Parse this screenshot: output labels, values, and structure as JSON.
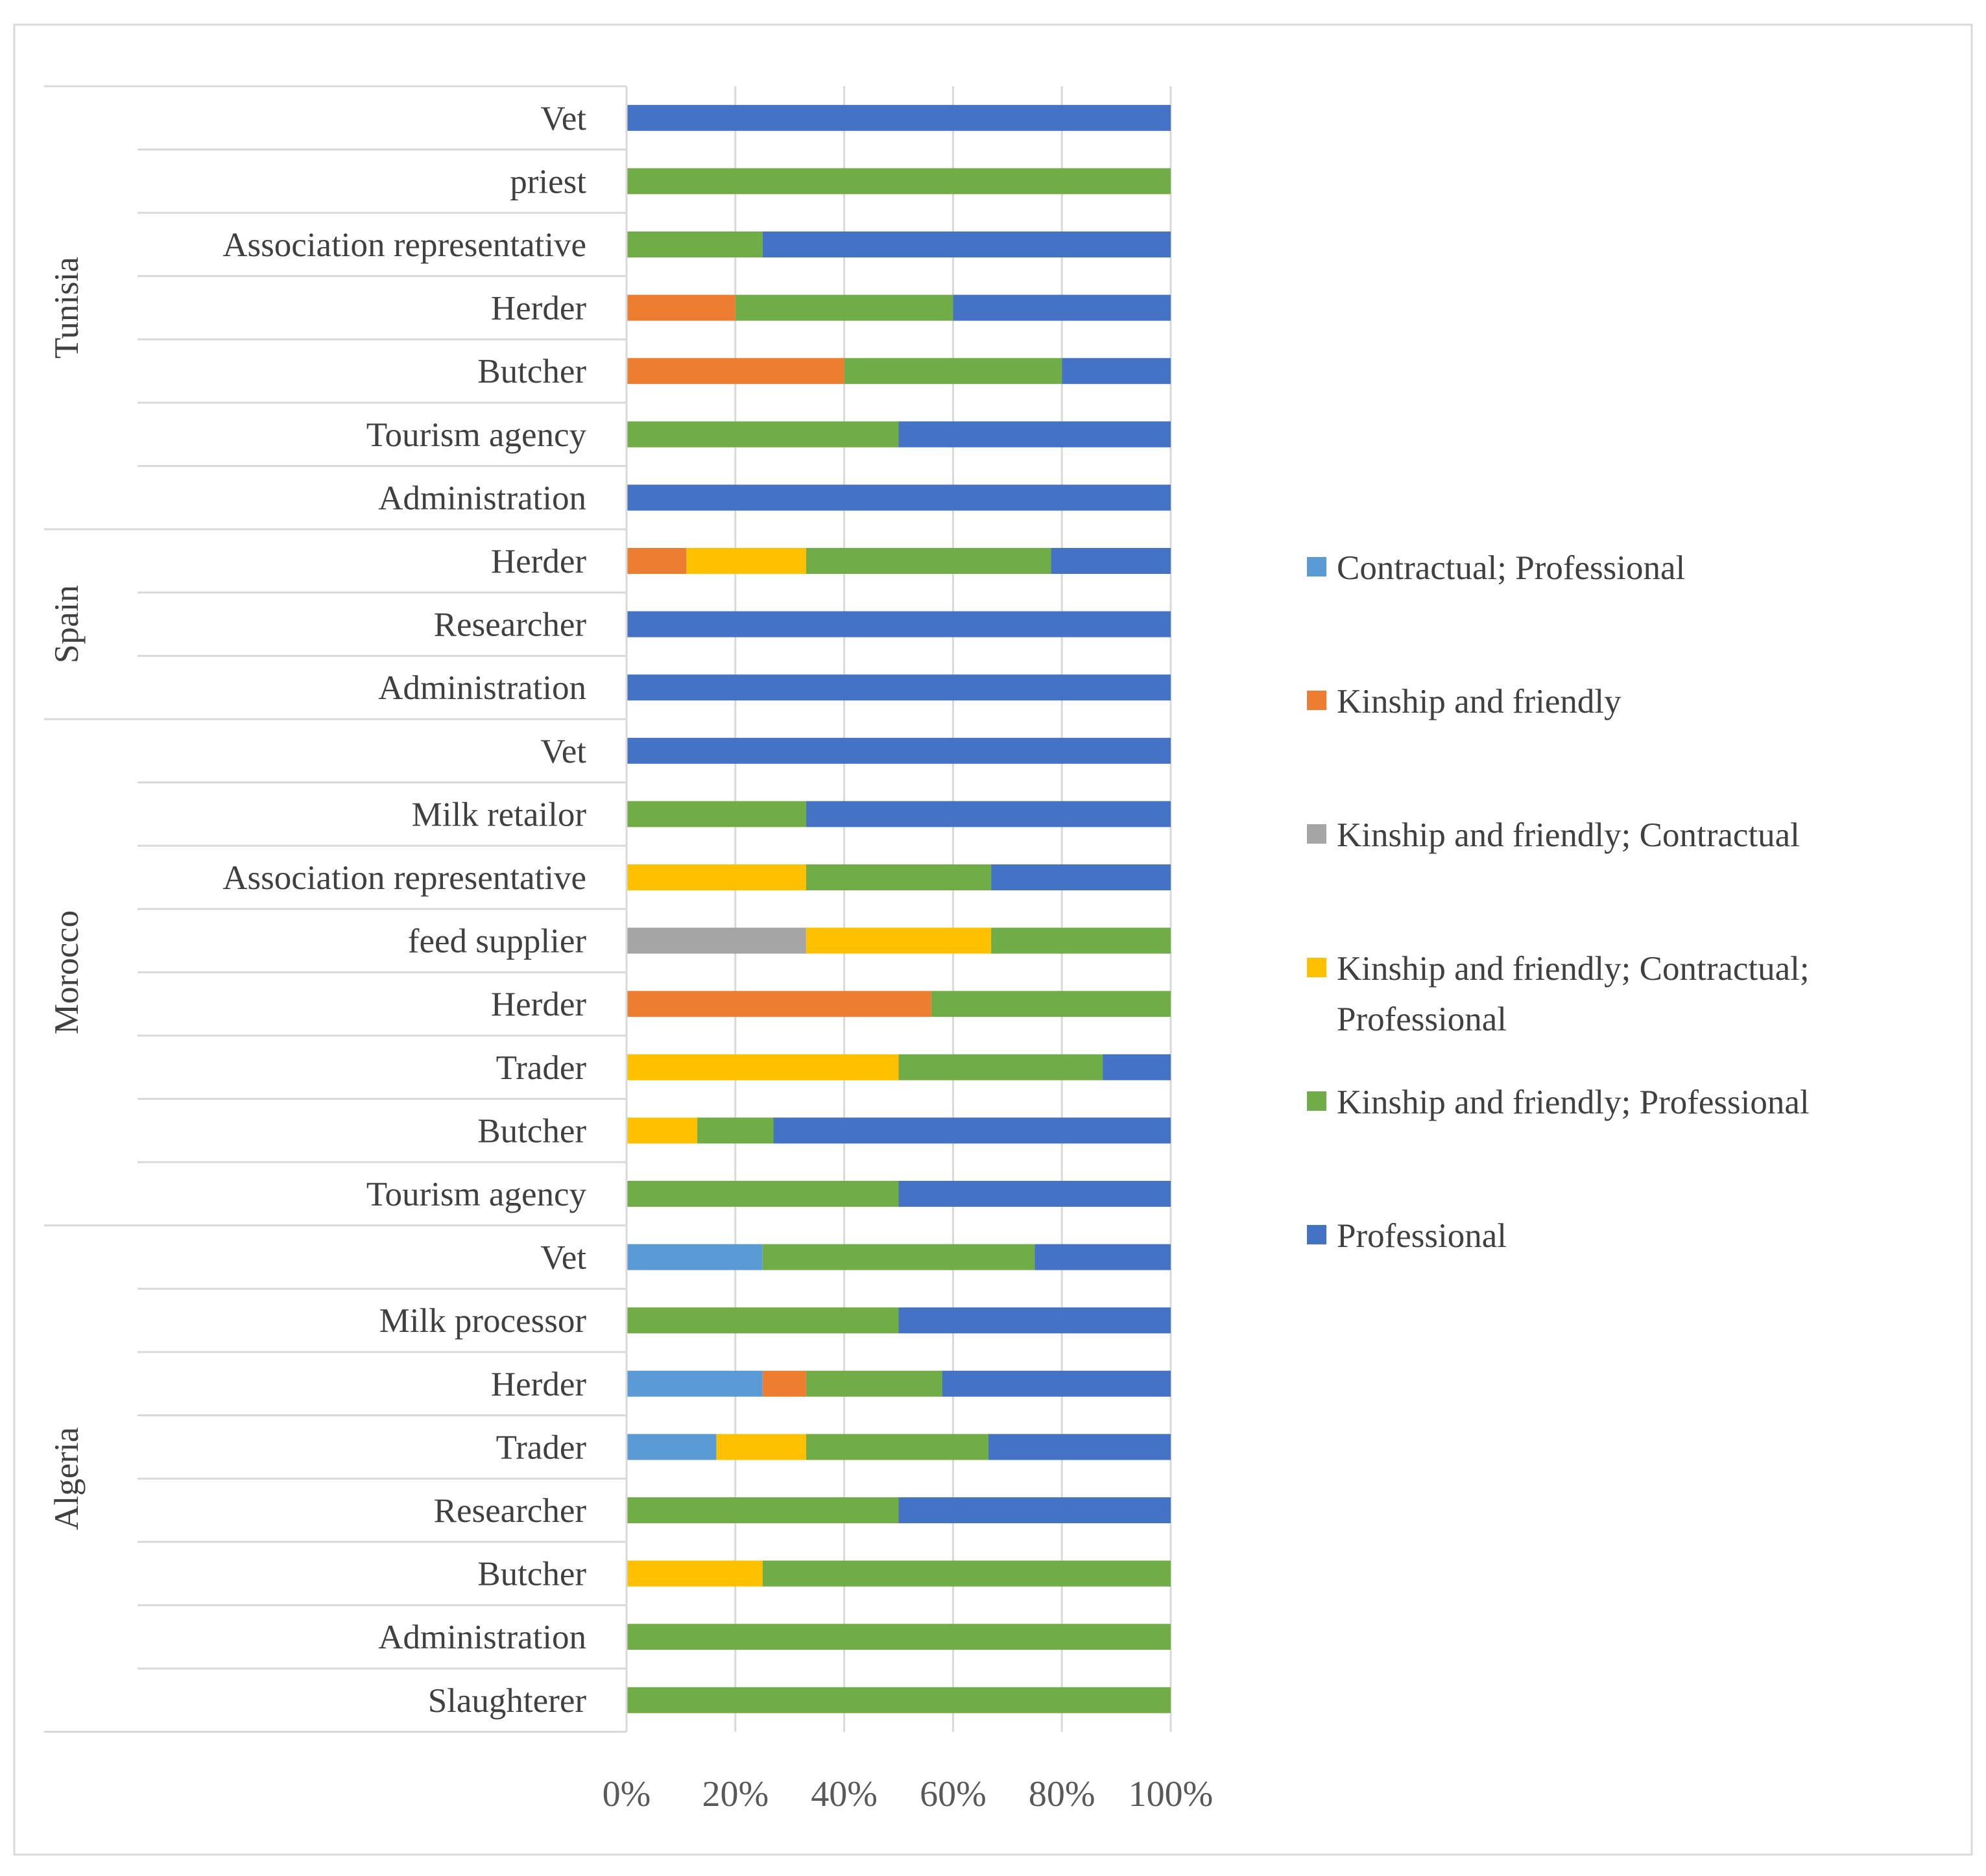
{
  "chart_data": {
    "type": "bar",
    "orientation": "horizontal",
    "stacking": "percent",
    "title": "",
    "xlabel": "",
    "ylabel": "",
    "xlim": [
      0,
      100
    ],
    "x_ticks": [
      "0%",
      "20%",
      "40%",
      "60%",
      "80%",
      "100%"
    ],
    "grid": true,
    "legend_position": "right",
    "series": [
      {
        "name": "Contractual; Professional",
        "color": "#5B9BD5"
      },
      {
        "name": "Kinship and friendly",
        "color": "#ED7D31"
      },
      {
        "name": "Kinship and friendly; Contractual",
        "color": "#A5A5A5"
      },
      {
        "name": "Kinship and friendly; Contractual; Professional",
        "color": "#FFC000"
      },
      {
        "name": "Kinship and friendly; Professional",
        "color": "#70AD47"
      },
      {
        "name": "Professional",
        "color": "#4472C4"
      }
    ],
    "groups": [
      {
        "name": "Tunisia",
        "categories": [
          {
            "label": "Vet",
            "values": [
              0,
              0,
              0,
              0,
              0,
              100
            ]
          },
          {
            "label": "priest",
            "values": [
              0,
              0,
              0,
              0,
              100,
              0
            ]
          },
          {
            "label": "Association representative",
            "values": [
              0,
              0,
              0,
              0,
              25,
              75
            ]
          },
          {
            "label": "Herder",
            "values": [
              0,
              20,
              0,
              0,
              40,
              40
            ]
          },
          {
            "label": "Butcher",
            "values": [
              0,
              40,
              0,
              0,
              40,
              20
            ]
          },
          {
            "label": "Tourism agency",
            "values": [
              0,
              0,
              0,
              0,
              50,
              50
            ]
          },
          {
            "label": "Administration",
            "values": [
              0,
              0,
              0,
              0,
              0,
              100
            ]
          }
        ]
      },
      {
        "name": "Spain",
        "categories": [
          {
            "label": "Herder",
            "values": [
              0,
              11,
              0,
              22,
              45,
              22
            ]
          },
          {
            "label": "Researcher",
            "values": [
              0,
              0,
              0,
              0,
              0,
              100
            ]
          },
          {
            "label": "Administration",
            "values": [
              0,
              0,
              0,
              0,
              0,
              100
            ]
          }
        ]
      },
      {
        "name": "Morocco",
        "categories": [
          {
            "label": "Vet",
            "values": [
              0,
              0,
              0,
              0,
              0,
              100
            ]
          },
          {
            "label": "Milk retailor",
            "values": [
              0,
              0,
              0,
              0,
              33,
              67
            ]
          },
          {
            "label": "Association representative",
            "values": [
              0,
              0,
              0,
              33,
              34,
              33
            ]
          },
          {
            "label": "feed supplier",
            "values": [
              0,
              0,
              33,
              34,
              33,
              0
            ]
          },
          {
            "label": "Herder",
            "values": [
              0,
              56,
              0,
              0,
              44,
              0
            ]
          },
          {
            "label": "Trader",
            "values": [
              0,
              0,
              0,
              50,
              37.5,
              12.5
            ]
          },
          {
            "label": "Butcher",
            "values": [
              0,
              0,
              0,
              13,
              14,
              73
            ]
          },
          {
            "label": "Tourism agency",
            "values": [
              0,
              0,
              0,
              0,
              50,
              50
            ]
          }
        ]
      },
      {
        "name": "Algeria",
        "categories": [
          {
            "label": "Vet",
            "values": [
              25,
              0,
              0,
              0,
              50,
              25
            ]
          },
          {
            "label": "Milk processor",
            "values": [
              0,
              0,
              0,
              0,
              50,
              50
            ]
          },
          {
            "label": "Herder",
            "values": [
              25,
              8,
              0,
              0,
              25,
              42
            ]
          },
          {
            "label": "Trader",
            "values": [
              16.5,
              0,
              0,
              16.5,
              33.5,
              33.5
            ]
          },
          {
            "label": "Researcher",
            "values": [
              0,
              0,
              0,
              0,
              50,
              50
            ]
          },
          {
            "label": "Butcher",
            "values": [
              0,
              0,
              0,
              25,
              75,
              0
            ]
          },
          {
            "label": "Administration",
            "values": [
              0,
              0,
              0,
              0,
              100,
              0
            ]
          },
          {
            "label": "Slaughterer",
            "values": [
              0,
              0,
              0,
              0,
              100,
              0
            ]
          }
        ]
      }
    ]
  }
}
